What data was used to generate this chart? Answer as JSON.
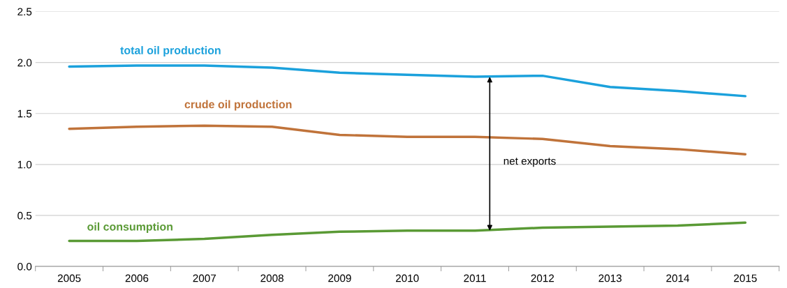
{
  "chart_data": {
    "type": "line",
    "categories": [
      "2005",
      "2006",
      "2007",
      "2008",
      "2009",
      "2010",
      "2011",
      "2012",
      "2013",
      "2014",
      "2015"
    ],
    "series": [
      {
        "name": "total oil production",
        "color": "#1ba1dc",
        "values": [
          1.96,
          1.97,
          1.97,
          1.95,
          1.9,
          1.88,
          1.86,
          1.87,
          1.76,
          1.72,
          1.67
        ]
      },
      {
        "name": "crude oil production",
        "color": "#c0733a",
        "values": [
          1.35,
          1.37,
          1.38,
          1.37,
          1.29,
          1.27,
          1.27,
          1.25,
          1.18,
          1.15,
          1.1
        ]
      },
      {
        "name": "oil consumption",
        "color": "#5a9a35",
        "values": [
          0.25,
          0.25,
          0.27,
          0.31,
          0.34,
          0.35,
          0.35,
          0.38,
          0.39,
          0.4,
          0.43
        ]
      }
    ],
    "ylim": [
      0,
      2.5
    ],
    "yticks": [
      {
        "value": 0,
        "label": "0.0"
      },
      {
        "value": 0.5,
        "label": "0.5"
      },
      {
        "value": 1,
        "label": "1.0"
      },
      {
        "value": 1.5,
        "label": "1.5"
      },
      {
        "value": 2,
        "label": "2.0"
      },
      {
        "value": 2.5,
        "label": "2.5"
      }
    ],
    "grid": "y",
    "annotations": [
      "net exports"
    ]
  }
}
